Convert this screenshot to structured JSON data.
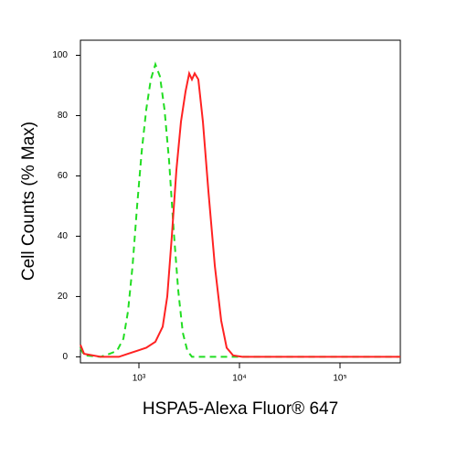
{
  "chart_data": {
    "type": "line",
    "x_label": "HSPA5-Alexa Fluor® 647",
    "y_label": "Cell Counts (% Max)",
    "x_scale": "log",
    "xlim": [
      262,
      398000
    ],
    "ylim": [
      -2,
      105
    ],
    "xticks": [
      {
        "value": 1000,
        "label": "10³"
      },
      {
        "value": 10000,
        "label": "10⁴"
      },
      {
        "value": 100000,
        "label": "10⁵"
      }
    ],
    "yticks": [
      0,
      20,
      40,
      60,
      80,
      100
    ],
    "series": [
      {
        "color": "#22dd22",
        "line_style": "dashed",
        "x": [
          262,
          285,
          415,
          512,
          605,
          700,
          778,
          864,
          960,
          1064,
          1183,
          1313,
          1458,
          1619,
          1798,
          1995,
          2215,
          2460,
          2731,
          3034,
          3367,
          398000
        ],
        "values": [
          3,
          0.5,
          0,
          1,
          2,
          6,
          15,
          30,
          50,
          68,
          82,
          92,
          97,
          93,
          82,
          65,
          42,
          22,
          8,
          2,
          0,
          0
        ]
      },
      {
        "color": "#ff2222",
        "line_style": "solid",
        "x": [
          262,
          285,
          415,
          631,
          778,
          960,
          1183,
          1458,
          1723,
          1914,
          2124,
          2360,
          2619,
          2911,
          3162,
          3367,
          3589,
          3899,
          4325,
          4910,
          5689,
          6577,
          7464,
          8630,
          10650,
          398000
        ],
        "values": [
          4,
          1,
          0,
          0,
          1,
          2,
          3,
          5,
          10,
          20,
          40,
          62,
          78,
          88,
          94,
          92,
          94,
          92,
          78,
          55,
          30,
          12,
          3,
          0.5,
          0,
          0
        ]
      }
    ]
  }
}
